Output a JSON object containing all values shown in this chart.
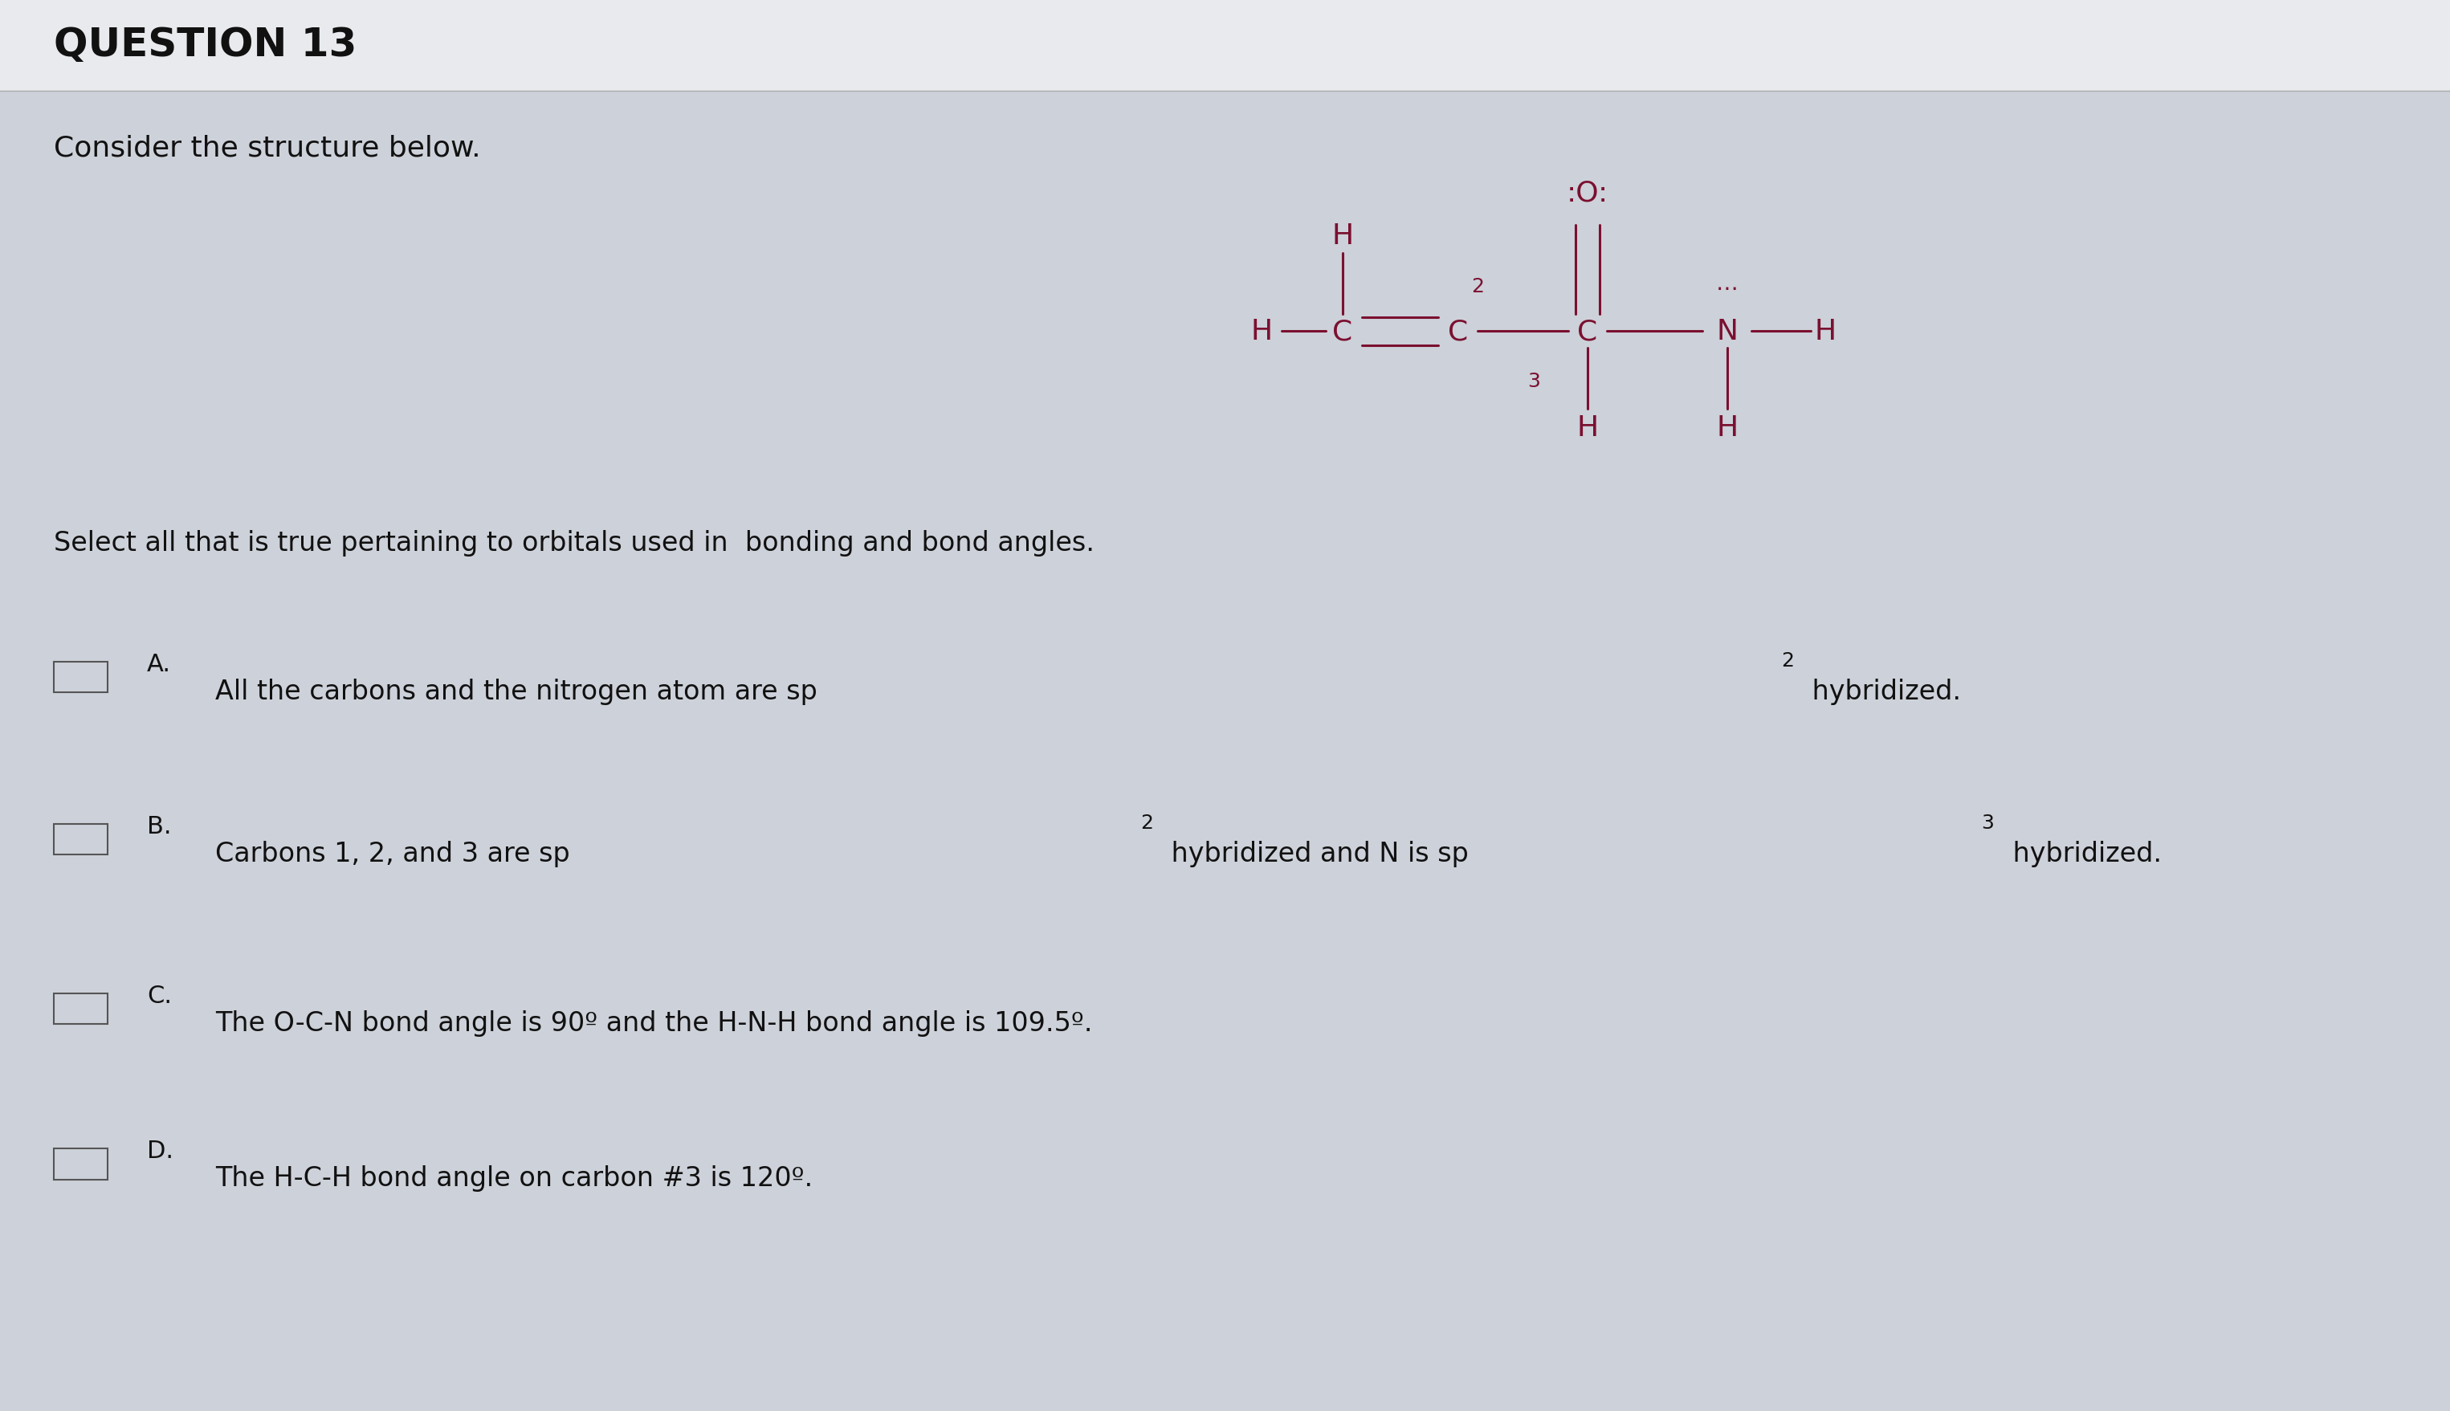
{
  "title": "QUESTION 13",
  "subtitle": "Consider the structure below.",
  "background_color": "#cdd1d9",
  "text_color": "#111111",
  "molecule_color": "#7b1030",
  "question_text": "Select all that is true pertaining to orbitals used in  bonding and bond angles.",
  "opt_A_parts": [
    "All the carbons and the nitrogen atom are sp",
    "2",
    " hybridized."
  ],
  "opt_B_parts": [
    "Carbons 1, 2, and 3 are sp",
    "2",
    " hybridized and N is sp",
    "3",
    " hybridized."
  ],
  "opt_C_text": "The O-C-N bond angle is 90º and the H-N-H bond angle is 109.5º.",
  "opt_D_text": "The H-C-H bond angle on carbon #3 is 120º.",
  "title_fontsize": 36,
  "subtitle_fontsize": 26,
  "question_fontsize": 24,
  "option_fontsize": 24,
  "mol_fontsize": 26,
  "mol_small_fontsize": 18,
  "mol_color": "#7b1030"
}
